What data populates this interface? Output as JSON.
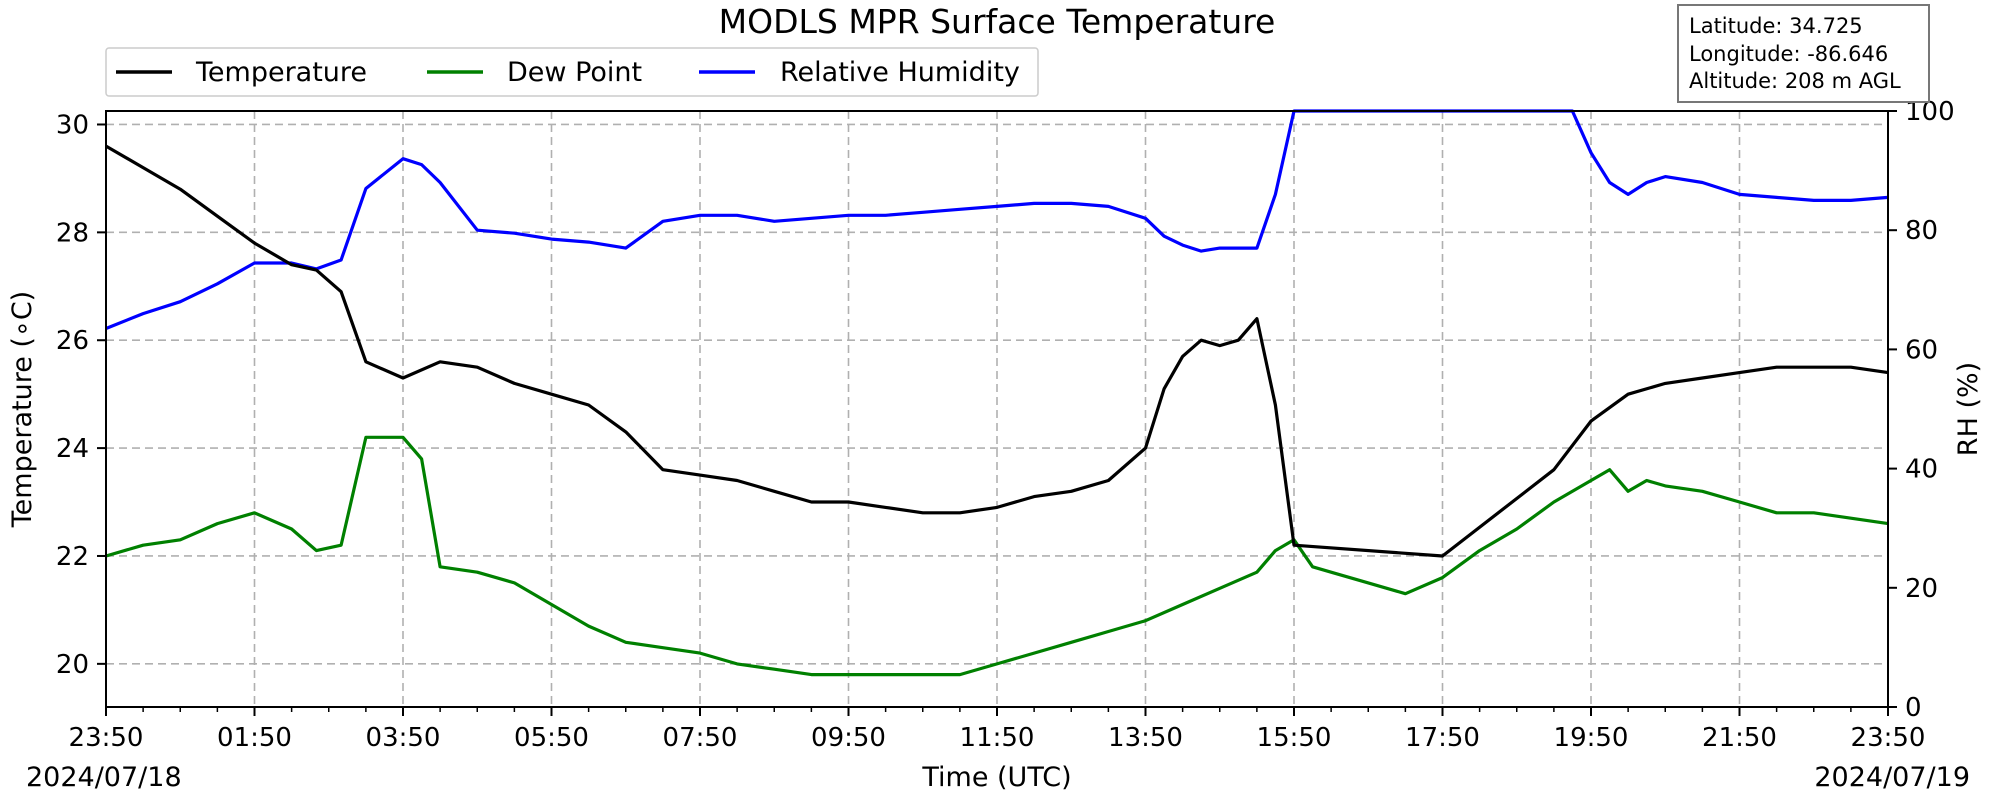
{
  "chart_data": {
    "type": "line",
    "title": "MODLS MPR Surface Temperature",
    "xlabel": "Time (UTC)",
    "ylabel_left": "Temperature (∘C)",
    "ylabel_right": "RH (%)",
    "ylim_left": [
      19.2,
      30.25
    ],
    "ylim_right": [
      0,
      100
    ],
    "x_ticks": [
      "23:50",
      "01:50",
      "03:50",
      "05:50",
      "07:50",
      "09:50",
      "11:50",
      "13:50",
      "15:50",
      "17:50",
      "19:50",
      "21:50",
      "23:50"
    ],
    "y_ticks_left": [
      "20",
      "22",
      "24",
      "26",
      "28",
      "30"
    ],
    "y_ticks_right": [
      "0",
      "20",
      "40",
      "60",
      "80",
      "100"
    ],
    "date_start": "2024/07/18",
    "date_end": "2024/07/19",
    "grid": true,
    "legend_position": "top-left",
    "info_box": {
      "latitude": "Latitude: 34.725",
      "longitude": "Longitude: -86.646",
      "altitude": "Altitude: 208 m AGL"
    },
    "series": [
      {
        "name": "Temperature",
        "axis": "left",
        "color": "#000000",
        "x": [
          "23:50",
          "00:20",
          "00:50",
          "01:20",
          "01:50",
          "02:20",
          "02:40",
          "03:00",
          "03:20",
          "03:50",
          "04:20",
          "04:50",
          "05:20",
          "05:50",
          "06:20",
          "06:50",
          "07:20",
          "07:50",
          "08:20",
          "08:50",
          "09:20",
          "09:50",
          "10:20",
          "10:50",
          "11:20",
          "11:50",
          "12:20",
          "12:50",
          "13:20",
          "13:50",
          "14:05",
          "14:20",
          "14:35",
          "14:50",
          "15:05",
          "15:20",
          "15:35",
          "15:50",
          "17:50",
          "19:20",
          "19:50",
          "20:20",
          "20:50",
          "21:20",
          "21:50",
          "22:20",
          "22:50",
          "23:20",
          "23:50"
        ],
        "values": [
          29.6,
          29.2,
          28.8,
          28.3,
          27.8,
          27.4,
          27.3,
          26.9,
          25.6,
          25.3,
          25.6,
          25.5,
          25.2,
          25.0,
          24.8,
          24.3,
          23.6,
          23.5,
          23.4,
          23.2,
          23.0,
          23.0,
          22.9,
          22.8,
          22.8,
          22.9,
          23.1,
          23.2,
          23.4,
          24.0,
          25.1,
          25.7,
          26.0,
          25.9,
          26.0,
          26.4,
          24.8,
          22.2,
          22.0,
          23.6,
          24.5,
          25.0,
          25.2,
          25.3,
          25.4,
          25.5,
          25.5,
          25.5,
          25.4
        ]
      },
      {
        "name": "Dew Point",
        "axis": "left",
        "color": "#008000",
        "x": [
          "23:50",
          "00:20",
          "00:50",
          "01:20",
          "01:50",
          "02:20",
          "02:40",
          "03:00",
          "03:20",
          "03:50",
          "04:05",
          "04:20",
          "04:50",
          "05:20",
          "05:50",
          "06:20",
          "06:50",
          "07:20",
          "07:50",
          "08:20",
          "08:50",
          "09:20",
          "09:50",
          "10:20",
          "10:50",
          "11:20",
          "11:50",
          "12:20",
          "12:50",
          "13:20",
          "13:50",
          "14:20",
          "14:50",
          "15:20",
          "15:35",
          "15:50",
          "16:05",
          "16:20",
          "16:50",
          "17:20",
          "17:50",
          "18:20",
          "18:50",
          "19:20",
          "19:50",
          "20:05",
          "20:20",
          "20:35",
          "20:50",
          "21:20",
          "21:50",
          "22:20",
          "22:50",
          "23:20",
          "23:50"
        ],
        "values": [
          22.0,
          22.2,
          22.3,
          22.6,
          22.8,
          22.5,
          22.1,
          22.2,
          24.2,
          24.2,
          23.8,
          21.8,
          21.7,
          21.5,
          21.1,
          20.7,
          20.4,
          20.3,
          20.2,
          20.0,
          19.9,
          19.8,
          19.8,
          19.8,
          19.8,
          19.8,
          20.0,
          20.2,
          20.4,
          20.6,
          20.8,
          21.1,
          21.4,
          21.7,
          22.1,
          22.3,
          21.8,
          21.7,
          21.5,
          21.3,
          21.6,
          22.1,
          22.5,
          23.0,
          23.4,
          23.6,
          23.2,
          23.4,
          23.3,
          23.2,
          23.0,
          22.8,
          22.8,
          22.7,
          22.6
        ]
      },
      {
        "name": "Relative Humidity",
        "axis": "right",
        "color": "#0000ff",
        "x": [
          "23:50",
          "00:20",
          "00:50",
          "01:20",
          "01:50",
          "02:20",
          "02:40",
          "03:00",
          "03:20",
          "03:50",
          "04:05",
          "04:20",
          "04:50",
          "05:20",
          "05:50",
          "06:20",
          "06:50",
          "07:20",
          "07:50",
          "08:20",
          "08:50",
          "09:20",
          "09:50",
          "10:20",
          "10:50",
          "11:20",
          "11:50",
          "12:20",
          "12:50",
          "13:20",
          "13:50",
          "14:05",
          "14:20",
          "14:35",
          "14:50",
          "15:05",
          "15:20",
          "15:35",
          "15:50",
          "16:50",
          "17:50",
          "18:50",
          "19:20",
          "19:35",
          "19:50",
          "20:05",
          "20:20",
          "20:35",
          "20:50",
          "21:20",
          "21:50",
          "22:20",
          "22:50",
          "23:20",
          "23:50"
        ],
        "values": [
          63.5,
          66.0,
          68.0,
          71.0,
          74.5,
          74.5,
          73.5,
          75.0,
          87.0,
          92.0,
          91.0,
          88.0,
          80.0,
          79.5,
          78.5,
          78.0,
          77.0,
          81.5,
          82.5,
          82.5,
          81.5,
          82.0,
          82.5,
          82.5,
          83.0,
          83.5,
          84.0,
          84.5,
          84.5,
          84.0,
          82.0,
          79.0,
          77.5,
          76.5,
          77.0,
          77.0,
          77.0,
          86.0,
          100.0,
          100.0,
          100.0,
          100.0,
          100.0,
          100.0,
          93.0,
          88.0,
          86.0,
          88.0,
          89.0,
          88.0,
          86.0,
          85.5,
          85.0,
          85.0,
          85.5
        ]
      }
    ]
  }
}
